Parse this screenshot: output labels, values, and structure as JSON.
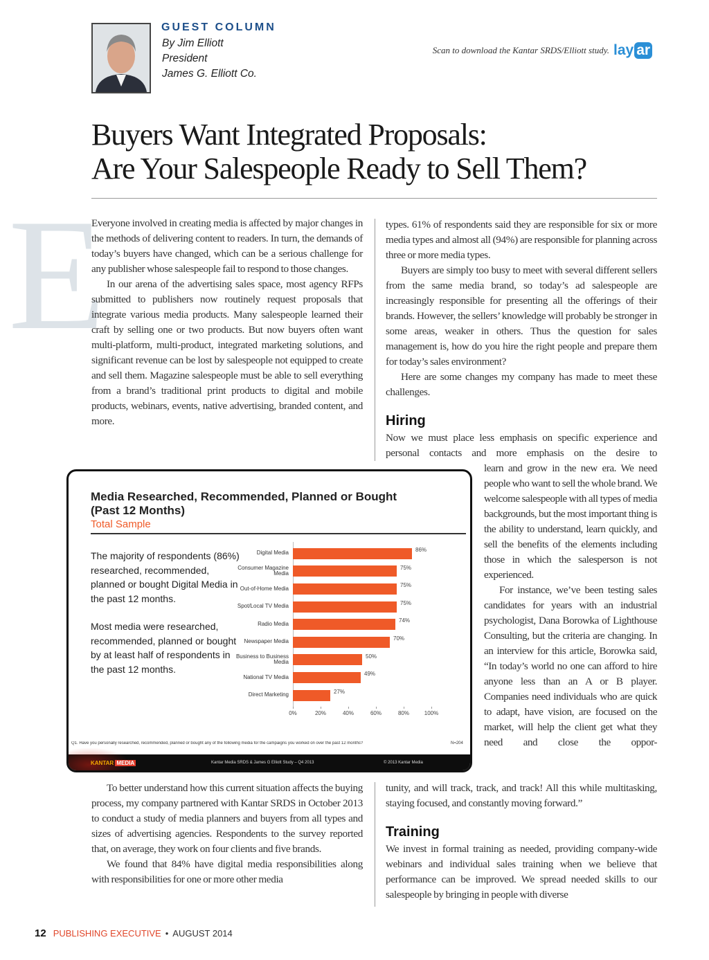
{
  "header": {
    "label": "GUEST COLUMN",
    "byline": "By Jim Elliott",
    "role": "President",
    "company": "James G. Elliott Co.",
    "scan_note": "Scan to download the Kantar SRDS/Elliott study.",
    "logo": {
      "left": "lay",
      "right": "ar"
    }
  },
  "headline": [
    "Buyers Want Integrated Proposals:",
    "Are Your Salespeople Ready to Sell Them?"
  ],
  "drop_cap": "E",
  "left_column": {
    "top": [
      "Everyone involved in creating media is affected by major changes in the methods of delivering content to readers. In turn, the demands of today’s buyers have changed, which can be a serious challenge for any publisher whose salespeople fail to respond to those changes.",
      "In our arena of the advertising sales space, most agency RFPs submitted to publishers now routinely request proposals that integrate various media products. Many salespeople learned their craft by selling one or two products. But now buyers often want multi-platform, multi-product, integrated marketing solutions, and significant revenue can be lost by salespeople not equipped to create and sell them. Magazine salespeople must be able to sell everything from a brand’s traditional print products to digital and mobile products, webinars, events, native advertising, branded content, and more."
    ],
    "bottom": [
      "To better understand how this current situation affects the buying process, my company partnered with Kantar SRDS in October 2013 to conduct a study of media planners and buyers from all types and sizes of advertising agencies. Respondents to the survey reported that, on average, they work on four clients and five brands.",
      "We found that 84% have digital media responsibilities along with responsibilities for one or more other media"
    ]
  },
  "right_column": {
    "intro": [
      "types. 61% of respondents said they are responsible for six or more media types and almost all (94%) are responsible for planning across three or more media types.",
      "Buyers are simply too busy to meet with several different sellers from the same media brand, so today’s ad salespeople are increasingly responsible for presenting all the offerings of their brands. However, the sellers’ knowledge will probably be stronger in some areas, weaker in others. Thus the question for sales management is, how do you hire the right people and prepare them for today’s sales environment?",
      "Here are some changes my company has made to meet these challenges."
    ],
    "hiring_heading": "Hiring",
    "hiring_lead": "Now we must place less emphasis on specific experience and personal contacts and more emphasis on the desire to",
    "hiring_narrow": [
      "learn and grow in the new era. We need people who want to sell the whole brand. We welcome salespeople with all types of media backgrounds, but the most important thing is the ability to understand, learn quickly, and sell the benefits of the elements including those in which the salesperson is not experienced.",
      "For instance, we’ve been testing sales candidates for years with an industrial psychologist, Dana Borowka of Lighthouse Consulting, but the criteria are changing. In an interview for this article, Borowka said, “In today’s world no one can afford to hire anyone less than an A or B player. Companies need individuals who are quick to adapt, have vision, are focused on the market, will help the client get what they need and close the oppor-"
    ],
    "hiring_end": "tunity, and will track, track, and track! All this while multitasking, staying focused, and constantly moving forward.”",
    "training_heading": "Training",
    "training": "We invest in formal training as needed, providing company-wide webinars and individual sales training when we believe that performance can be improved. We spread needed skills to our salespeople by bringing in people with diverse"
  },
  "chart": {
    "type": "bar",
    "title": [
      "Media Researched, Recommended, Planned or Bought",
      "(Past 12 Months)"
    ],
    "subtitle": "Total Sample",
    "notes": [
      "The majority of respondents (86%) researched, recommended, planned or bought Digital Media in the past 12 months.",
      "Most media were researched, recommended, planned or bought by at least half of respondents in the past 12 months."
    ],
    "categories": [
      "Digital Media",
      "Consumer Magazine Media",
      "Out-of-Home Media",
      "Spot/Local TV Media",
      "Radio Media",
      "Newspaper Media",
      "Business to Business Media",
      "National TV Media",
      "Direct Marketing"
    ],
    "values": [
      86,
      75,
      75,
      75,
      74,
      70,
      50,
      49,
      27
    ],
    "value_labels": [
      "86%",
      "75%",
      "75%",
      "75%",
      "74%",
      "70%",
      "50%",
      "49%",
      "27%"
    ],
    "color": "#ef5a28",
    "xlim": [
      0,
      100
    ],
    "xticks": [
      {
        "value": 0,
        "label": "0%"
      },
      {
        "value": 20,
        "label": "20%"
      },
      {
        "value": 40,
        "label": "40%"
      },
      {
        "value": 60,
        "label": "60%"
      },
      {
        "value": 80,
        "label": "80%"
      },
      {
        "value": 100,
        "label": "100%"
      }
    ],
    "footnote": "Q1. Have you personally researched, recommended, planned or bought any of the following media for the campaigns you worked on over the past 12 months?",
    "sample": "N=204",
    "brand": {
      "left": "KANTAR",
      "right": "MEDIA"
    },
    "source": "Kantar Media SRDS & James G Elliott Study – Q4 2013",
    "copyright": "© 2013 Kantar Media"
  },
  "footer": {
    "page": "12",
    "publication": "PUBLISHING EXECUTIVE",
    "separator": "•",
    "date": "AUGUST 2014"
  }
}
